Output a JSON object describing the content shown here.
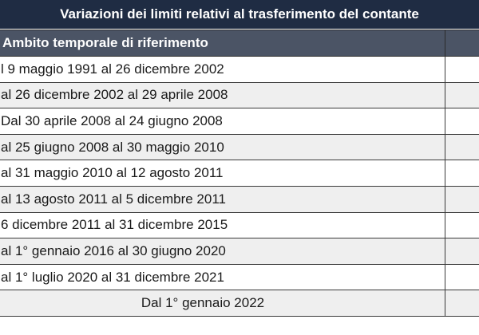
{
  "header": {
    "title": "Variazioni dei limiti relativi al trasferimento del contante"
  },
  "table": {
    "column_header": "Ambito temporale di riferimento",
    "rows": [
      "l 9 maggio 1991 al 26 dicembre 2002",
      "al 26 dicembre 2002 al 29 aprile 2008",
      "Dal 30 aprile 2008 al 24 giugno 2008",
      "al 25 giugno 2008 al 30 maggio 2010",
      "al 31 maggio 2010 al 12 agosto 2011",
      "al 13 agosto 2011 al 5 dicembre 2011",
      "6 dicembre 2011 al 31 dicembre 2015",
      "al 1° gennaio 2016 al 30 giugno 2020",
      "al 1° luglio 2020 al 31 dicembre 2021",
      "Dal 1° gennaio 2022"
    ]
  }
}
